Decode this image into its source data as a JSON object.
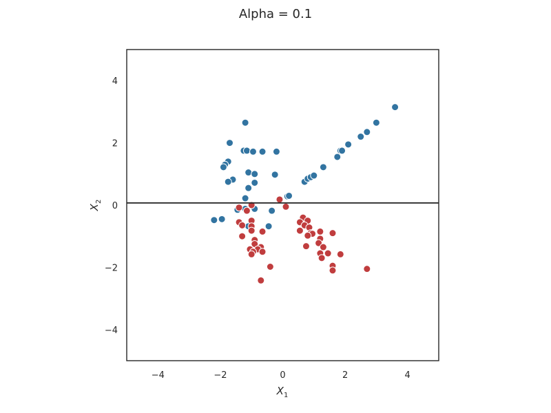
{
  "chart_data": {
    "type": "scatter",
    "title": "Alpha = 0.1",
    "xlabel": "X",
    "xlabel_sub": "1",
    "ylabel": "X",
    "ylabel_sub": "2",
    "xlim": [
      -5,
      5
    ],
    "ylim": [
      -5,
      5
    ],
    "xticks": [
      -4,
      -2,
      0,
      2,
      4
    ],
    "yticks": [
      -4,
      -2,
      0,
      2,
      4
    ],
    "xtick_labels": [
      "−4",
      "−2",
      "0",
      "2",
      "4"
    ],
    "ytick_labels": [
      "−4",
      "−2",
      "0",
      "2",
      "4"
    ],
    "grid": false,
    "decision_boundary": {
      "y": 0.07
    },
    "colors": {
      "blue": "#3274a1",
      "red": "#c03d3e",
      "line": "#262626",
      "frame": "#262626"
    },
    "series": [
      {
        "color_key": "blue",
        "points": [
          [
            -1.2,
            2.65
          ],
          [
            -1.7,
            2.0
          ],
          [
            -1.25,
            1.75
          ],
          [
            -1.15,
            1.75
          ],
          [
            -0.95,
            1.72
          ],
          [
            -0.65,
            1.72
          ],
          [
            -0.2,
            1.72
          ],
          [
            -1.75,
            1.4
          ],
          [
            -1.85,
            1.3
          ],
          [
            -1.9,
            1.22
          ],
          [
            -1.1,
            1.05
          ],
          [
            -0.9,
            1.0
          ],
          [
            -0.25,
            0.98
          ],
          [
            -1.6,
            0.82
          ],
          [
            -1.75,
            0.75
          ],
          [
            -0.9,
            0.72
          ],
          [
            -1.1,
            0.55
          ],
          [
            -1.2,
            0.22
          ],
          [
            -1.45,
            -0.15
          ],
          [
            -1.2,
            -0.12
          ],
          [
            -0.9,
            -0.12
          ],
          [
            -0.35,
            -0.18
          ],
          [
            -1.1,
            -0.68
          ],
          [
            -0.45,
            -0.68
          ],
          [
            -1.3,
            -0.98
          ],
          [
            -2.2,
            -0.48
          ],
          [
            -1.95,
            -0.45
          ],
          [
            0.15,
            0.28
          ],
          [
            0.2,
            0.3
          ],
          [
            0.7,
            0.75
          ],
          [
            0.8,
            0.85
          ],
          [
            0.9,
            0.9
          ],
          [
            1.0,
            0.95
          ],
          [
            1.3,
            1.22
          ],
          [
            1.75,
            1.55
          ],
          [
            1.85,
            1.75
          ],
          [
            1.9,
            1.75
          ],
          [
            2.1,
            1.95
          ],
          [
            2.5,
            2.2
          ],
          [
            2.7,
            2.35
          ],
          [
            3.0,
            2.65
          ],
          [
            3.6,
            3.15
          ]
        ]
      },
      {
        "color_key": "red",
        "points": [
          [
            -0.1,
            0.18
          ],
          [
            0.1,
            -0.05
          ],
          [
            -1.4,
            -0.08
          ],
          [
            -1.0,
            0.0
          ],
          [
            -1.15,
            -0.18
          ],
          [
            -1.4,
            -0.55
          ],
          [
            -1.0,
            -0.5
          ],
          [
            -1.3,
            -0.65
          ],
          [
            -1.0,
            -0.68
          ],
          [
            -0.65,
            -0.85
          ],
          [
            -1.0,
            -0.82
          ],
          [
            -1.3,
            -1.0
          ],
          [
            -0.9,
            -1.12
          ],
          [
            -0.9,
            -1.25
          ],
          [
            -0.7,
            -1.35
          ],
          [
            -1.05,
            -1.42
          ],
          [
            -0.8,
            -1.42
          ],
          [
            -0.95,
            -1.5
          ],
          [
            -0.65,
            -1.5
          ],
          [
            -1.0,
            -1.58
          ],
          [
            -0.4,
            -1.98
          ],
          [
            -0.7,
            -2.42
          ],
          [
            0.65,
            -0.4
          ],
          [
            0.55,
            -0.55
          ],
          [
            0.8,
            -0.5
          ],
          [
            0.7,
            -0.65
          ],
          [
            0.85,
            -0.72
          ],
          [
            0.55,
            -0.82
          ],
          [
            0.9,
            -0.9
          ],
          [
            0.95,
            -0.92
          ],
          [
            0.8,
            -0.98
          ],
          [
            1.2,
            -0.85
          ],
          [
            1.2,
            -1.08
          ],
          [
            1.15,
            -1.22
          ],
          [
            1.3,
            -1.35
          ],
          [
            1.6,
            -0.9
          ],
          [
            1.45,
            -1.55
          ],
          [
            1.2,
            -1.55
          ],
          [
            1.25,
            -1.7
          ],
          [
            1.85,
            -1.58
          ],
          [
            0.75,
            -1.32
          ],
          [
            1.6,
            -1.95
          ],
          [
            1.6,
            -2.1
          ],
          [
            2.7,
            -2.05
          ]
        ]
      }
    ]
  }
}
